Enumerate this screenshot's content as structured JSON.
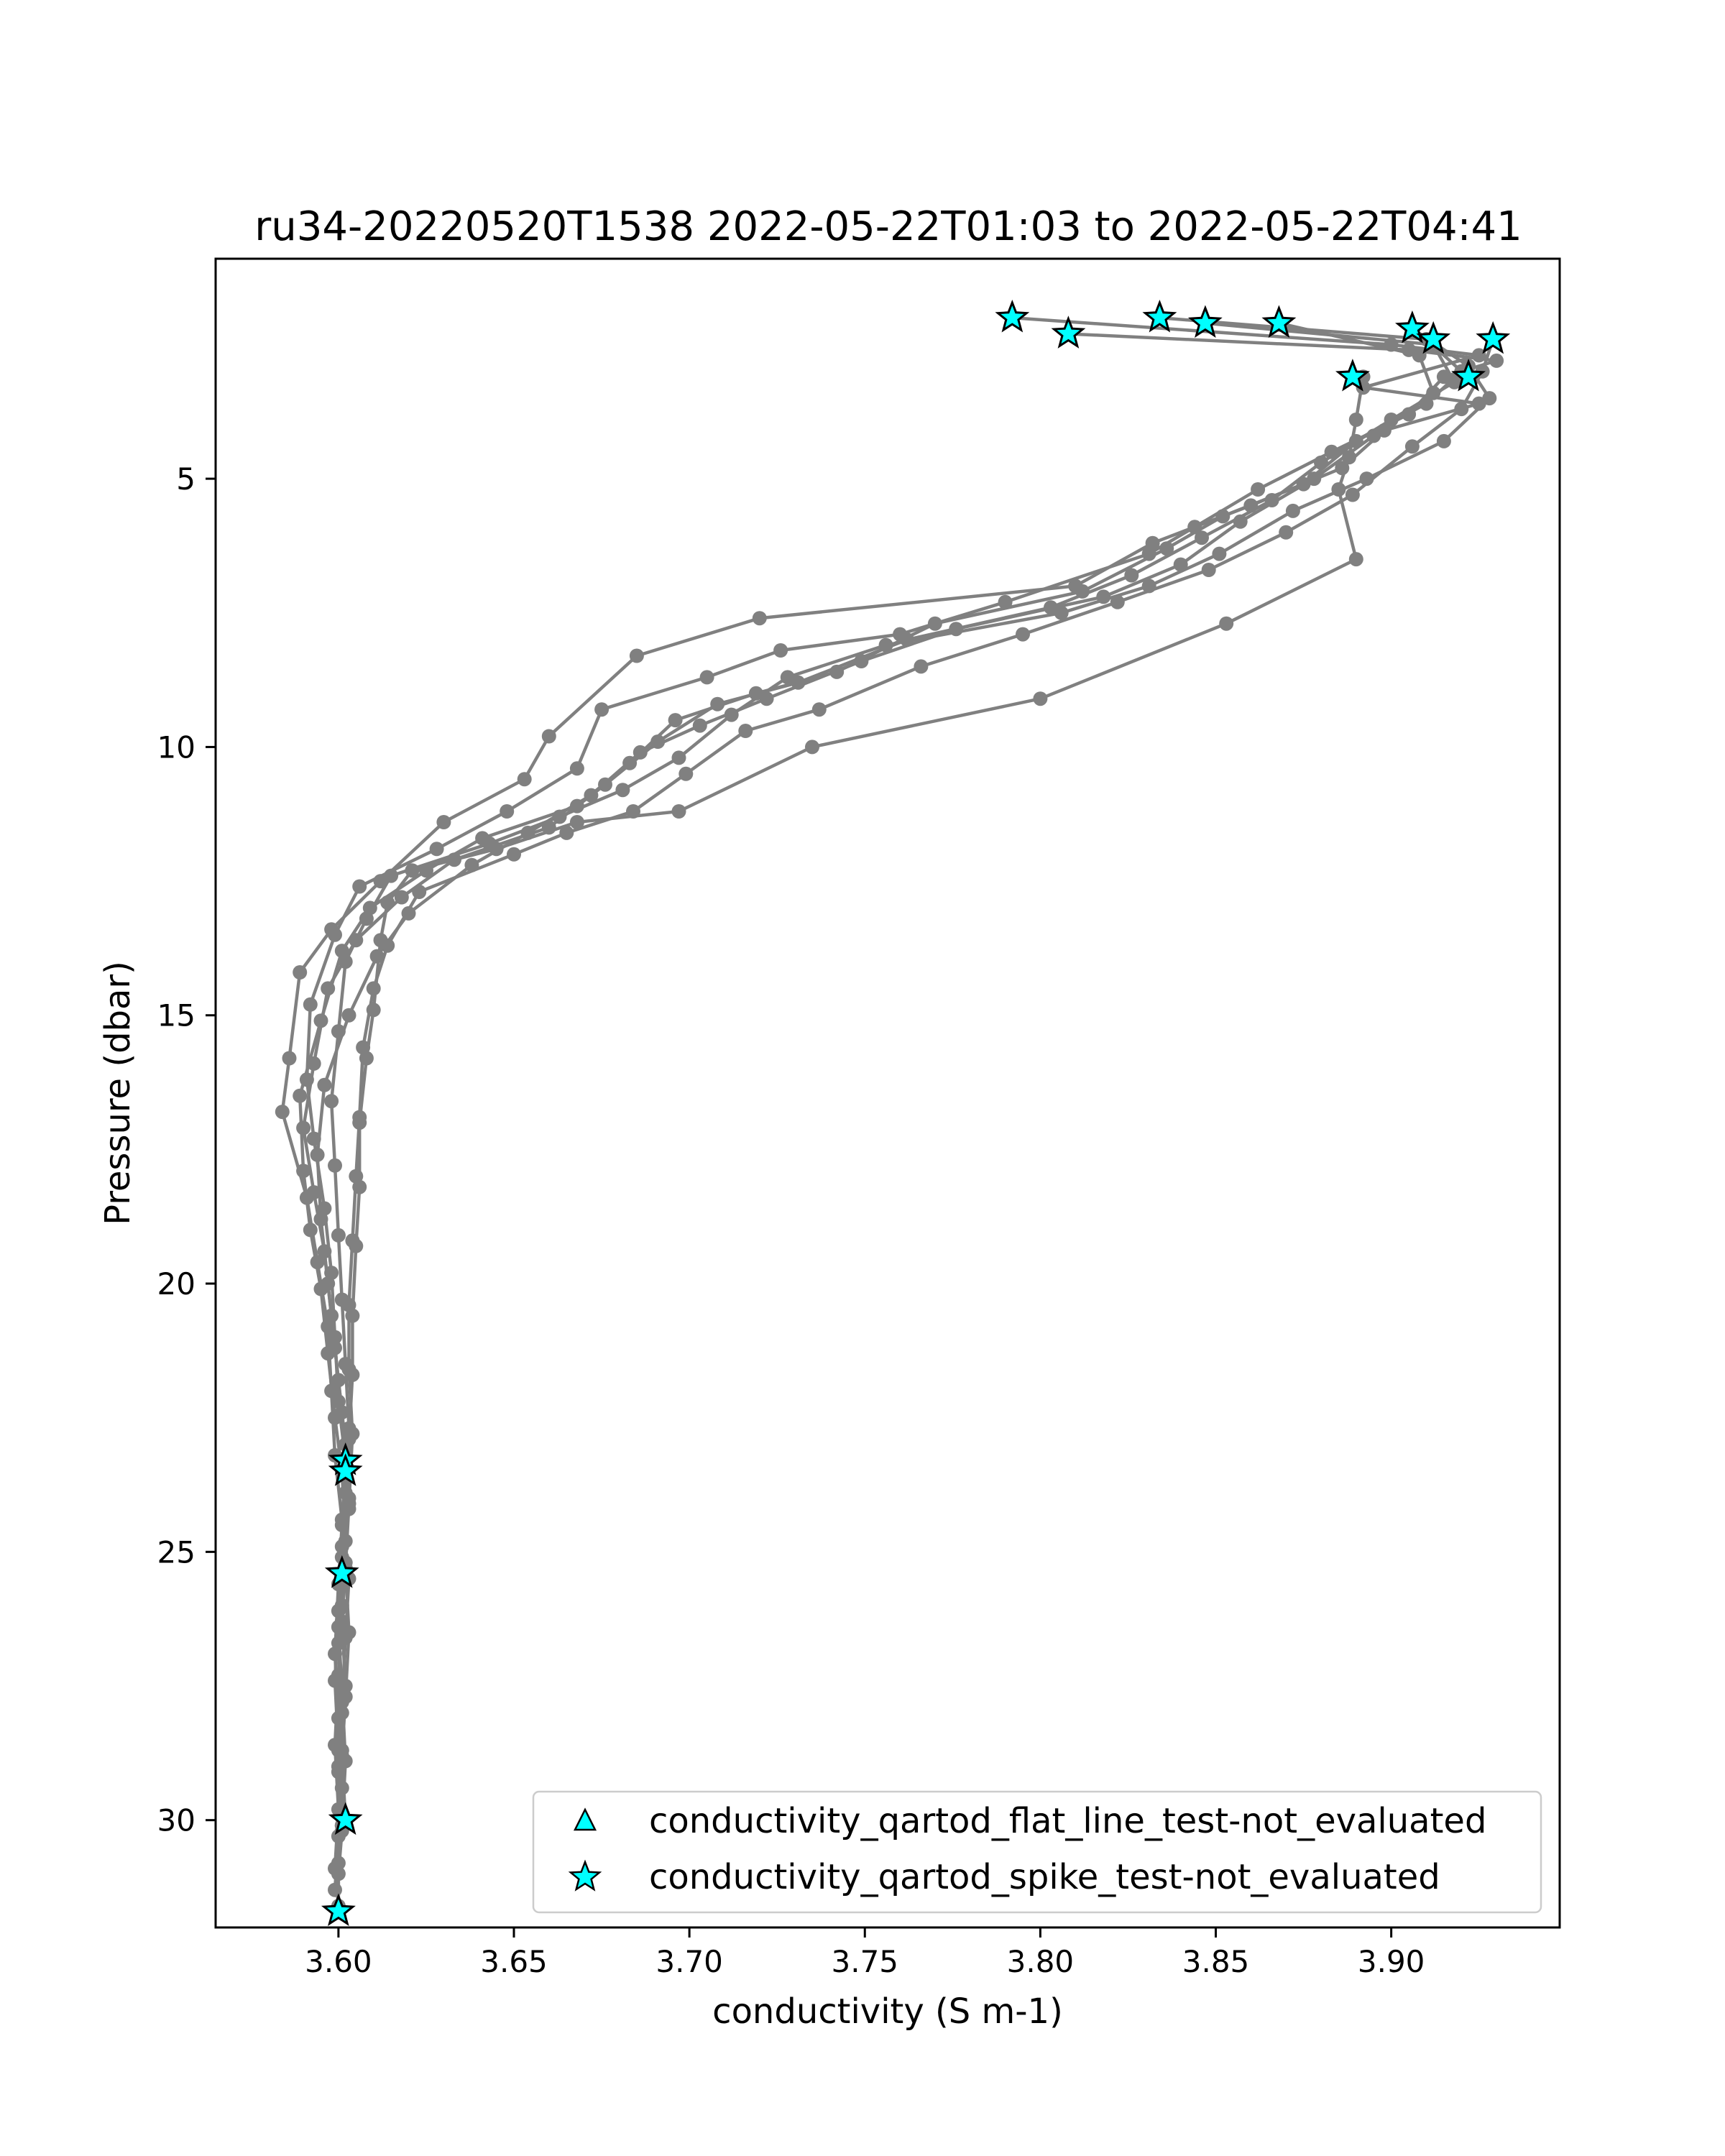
{
  "chart_data": {
    "type": "line",
    "title": "ru34-20220520T1538 2022-05-22T01:03 to 2022-05-22T04:41",
    "xlabel": "conductivity (S m-1)",
    "ylabel": "Pressure (dbar)",
    "xlim": [
      3.565,
      3.948
    ],
    "ylim": [
      32.0,
      0.9
    ],
    "y_inverted": true,
    "grid": false,
    "xticks": [
      3.6,
      3.65,
      3.7,
      3.75,
      3.8,
      3.85,
      3.9
    ],
    "xtick_labels": [
      "3.60",
      "3.65",
      "3.70",
      "3.75",
      "3.80",
      "3.85",
      "3.90"
    ],
    "yticks": [
      5,
      10,
      15,
      20,
      25,
      30
    ],
    "ytick_labels": [
      "5",
      "10",
      "15",
      "20",
      "25",
      "30"
    ],
    "line_color": "#808080",
    "marker_color": "#00ffff",
    "legend_position": "lower right",
    "legend": [
      {
        "label": "conductivity_qartod_flat_line_test-not_evaluated",
        "marker": "triangle"
      },
      {
        "label": "conductivity_qartod_spike_test-not_evaluated",
        "marker": "star"
      }
    ],
    "series": [
      {
        "points": [
          [
            3.792,
            2.0
          ],
          [
            3.9,
            2.5
          ],
          [
            3.925,
            2.7
          ],
          [
            3.892,
            3.3
          ],
          [
            3.925,
            3.6
          ],
          [
            3.898,
            4.1
          ],
          [
            3.886,
            4.8
          ],
          [
            3.86,
            5.5
          ],
          [
            3.832,
            6.2
          ],
          [
            3.81,
            7.0
          ],
          [
            3.72,
            7.6
          ],
          [
            3.685,
            8.3
          ],
          [
            3.66,
            9.8
          ],
          [
            3.653,
            10.6
          ],
          [
            3.63,
            11.4
          ],
          [
            3.612,
            12.5
          ],
          [
            3.598,
            13.4
          ],
          [
            3.589,
            14.2
          ],
          [
            3.586,
            15.8
          ],
          [
            3.584,
            16.8
          ],
          [
            3.591,
            18.4
          ],
          [
            3.594,
            19.6
          ],
          [
            3.597,
            20.8
          ],
          [
            3.598,
            22.0
          ],
          [
            3.599,
            23.2
          ],
          [
            3.601,
            24.4
          ],
          [
            3.603,
            25.5
          ],
          [
            3.602,
            26.6
          ],
          [
            3.601,
            27.8
          ],
          [
            3.6,
            29.0
          ],
          [
            3.601,
            30.2
          ],
          [
            3.6,
            31.0
          ],
          [
            3.6,
            31.7
          ]
        ]
      },
      {
        "points": [
          [
            3.808,
            2.3
          ],
          [
            3.905,
            2.6
          ],
          [
            3.93,
            2.8
          ],
          [
            3.915,
            3.1
          ],
          [
            3.905,
            3.8
          ],
          [
            3.883,
            4.5
          ],
          [
            3.862,
            5.2
          ],
          [
            3.844,
            5.9
          ],
          [
            3.831,
            6.4
          ],
          [
            3.79,
            7.3
          ],
          [
            3.76,
            7.9
          ],
          [
            3.726,
            8.2
          ],
          [
            3.705,
            8.7
          ],
          [
            3.675,
            9.3
          ],
          [
            3.668,
            10.4
          ],
          [
            3.648,
            11.2
          ],
          [
            3.628,
            11.9
          ],
          [
            3.606,
            12.6
          ],
          [
            3.599,
            13.5
          ],
          [
            3.592,
            14.8
          ],
          [
            3.591,
            16.2
          ],
          [
            3.593,
            17.3
          ],
          [
            3.596,
            18.6
          ],
          [
            3.598,
            19.8
          ],
          [
            3.599,
            21.0
          ],
          [
            3.6,
            22.2
          ],
          [
            3.602,
            23.3
          ],
          [
            3.601,
            24.5
          ],
          [
            3.6,
            25.6
          ],
          [
            3.599,
            26.9
          ],
          [
            3.6,
            28.1
          ],
          [
            3.601,
            29.4
          ],
          [
            3.602,
            30.0
          ]
        ]
      },
      {
        "points": [
          [
            3.834,
            2.0
          ],
          [
            3.91,
            2.4
          ],
          [
            3.92,
            3.0
          ],
          [
            3.91,
            3.6
          ],
          [
            3.89,
            4.3
          ],
          [
            3.875,
            5.1
          ],
          [
            3.852,
            5.7
          ],
          [
            3.836,
            6.3
          ],
          [
            3.812,
            7.1
          ],
          [
            3.77,
            7.7
          ],
          [
            3.742,
            8.6
          ],
          [
            3.719,
            9.0
          ],
          [
            3.696,
            9.5
          ],
          [
            3.683,
            10.3
          ],
          [
            3.668,
            11.1
          ],
          [
            3.641,
            11.7
          ],
          [
            3.625,
            12.3
          ],
          [
            3.609,
            13.0
          ],
          [
            3.601,
            13.8
          ],
          [
            3.595,
            15.1
          ],
          [
            3.589,
            16.5
          ],
          [
            3.59,
            17.9
          ],
          [
            3.592,
            19.0
          ],
          [
            3.595,
            20.1
          ],
          [
            3.597,
            21.3
          ],
          [
            3.599,
            22.5
          ],
          [
            3.601,
            23.5
          ],
          [
            3.602,
            24.8
          ],
          [
            3.601,
            26.0
          ],
          [
            3.6,
            27.3
          ],
          [
            3.599,
            28.6
          ],
          [
            3.6,
            29.8
          ],
          [
            3.599,
            30.9
          ],
          [
            3.6,
            31.6
          ]
        ]
      },
      {
        "points": [
          [
            3.847,
            2.1
          ],
          [
            3.912,
            2.5
          ],
          [
            3.918,
            3.2
          ],
          [
            3.9,
            3.9
          ],
          [
            3.88,
            4.7
          ],
          [
            3.866,
            5.4
          ],
          [
            3.846,
            6.1
          ],
          [
            3.826,
            6.8
          ],
          [
            3.803,
            7.4
          ],
          [
            3.762,
            8.0
          ],
          [
            3.731,
            8.8
          ],
          [
            3.708,
            9.2
          ],
          [
            3.691,
            9.9
          ],
          [
            3.676,
            10.7
          ],
          [
            3.66,
            11.5
          ],
          [
            3.633,
            12.1
          ],
          [
            3.618,
            12.8
          ],
          [
            3.605,
            13.6
          ],
          [
            3.597,
            14.5
          ],
          [
            3.593,
            15.9
          ],
          [
            3.59,
            17.1
          ],
          [
            3.593,
            18.3
          ],
          [
            3.596,
            19.4
          ],
          [
            3.598,
            20.6
          ],
          [
            3.6,
            21.8
          ],
          [
            3.602,
            23.0
          ],
          [
            3.603,
            24.2
          ],
          [
            3.601,
            25.4
          ],
          [
            3.6,
            26.7
          ],
          [
            3.601,
            28.0
          ],
          [
            3.6,
            29.1
          ],
          [
            3.6,
            30.3
          ],
          [
            3.599,
            31.3
          ]
        ]
      },
      {
        "points": [
          [
            3.868,
            2.1
          ],
          [
            3.908,
            2.7
          ],
          [
            3.912,
            3.4
          ],
          [
            3.895,
            4.2
          ],
          [
            3.878,
            5.0
          ],
          [
            3.857,
            5.8
          ],
          [
            3.84,
            6.6
          ],
          [
            3.818,
            7.2
          ],
          [
            3.776,
            7.8
          ],
          [
            3.749,
            8.4
          ],
          [
            3.722,
            9.1
          ],
          [
            3.703,
            9.6
          ],
          [
            3.686,
            10.1
          ],
          [
            3.672,
            10.9
          ],
          [
            3.654,
            11.6
          ],
          [
            3.638,
            12.2
          ],
          [
            3.62,
            13.1
          ],
          [
            3.611,
            13.9
          ],
          [
            3.603,
            15.0
          ],
          [
            3.596,
            16.3
          ],
          [
            3.594,
            17.6
          ],
          [
            3.595,
            18.8
          ],
          [
            3.597,
            20.0
          ],
          [
            3.599,
            21.2
          ],
          [
            3.601,
            22.4
          ],
          [
            3.602,
            23.6
          ],
          [
            3.601,
            24.9
          ],
          [
            3.6,
            26.1
          ],
          [
            3.599,
            27.4
          ],
          [
            3.6,
            28.7
          ],
          [
            3.601,
            29.9
          ],
          [
            3.6,
            30.8
          ]
        ]
      },
      {
        "points": [
          [
            3.906,
            2.2
          ],
          [
            3.922,
            2.9
          ],
          [
            3.928,
            3.5
          ],
          [
            3.915,
            4.3
          ],
          [
            3.893,
            5.0
          ],
          [
            3.872,
            5.6
          ],
          [
            3.851,
            6.4
          ],
          [
            3.831,
            7.0
          ],
          [
            3.806,
            7.5
          ],
          [
            3.756,
            8.1
          ],
          [
            3.728,
            8.7
          ],
          [
            3.712,
            9.4
          ],
          [
            3.697,
            10.2
          ],
          [
            3.681,
            10.8
          ],
          [
            3.663,
            11.3
          ],
          [
            3.643,
            11.8
          ],
          [
            3.615,
            12.4
          ],
          [
            3.608,
            13.2
          ],
          [
            3.602,
            14.0
          ],
          [
            3.6,
            15.3
          ],
          [
            3.598,
            16.6
          ],
          [
            3.599,
            17.8
          ],
          [
            3.6,
            19.1
          ],
          [
            3.601,
            20.3
          ],
          [
            3.602,
            21.5
          ],
          [
            3.603,
            22.7
          ],
          [
            3.602,
            23.9
          ],
          [
            3.601,
            25.1
          ],
          [
            3.6,
            26.4
          ],
          [
            3.601,
            27.6
          ],
          [
            3.602,
            28.9
          ],
          [
            3.601,
            30.1
          ]
        ]
      },
      {
        "points": [
          [
            3.929,
            2.4
          ],
          [
            3.926,
            3.0
          ],
          [
            3.92,
            3.7
          ],
          [
            3.906,
            4.4
          ],
          [
            3.889,
            5.3
          ],
          [
            3.87,
            6.0
          ],
          [
            3.848,
            6.7
          ],
          [
            3.822,
            7.3
          ],
          [
            3.795,
            7.9
          ],
          [
            3.766,
            8.5
          ],
          [
            3.737,
            9.3
          ],
          [
            3.716,
            9.7
          ],
          [
            3.699,
            10.5
          ],
          [
            3.684,
            11.2
          ],
          [
            3.665,
            11.6
          ],
          [
            3.65,
            12.0
          ],
          [
            3.623,
            12.7
          ],
          [
            3.614,
            13.7
          ],
          [
            3.61,
            14.5
          ],
          [
            3.607,
            15.6
          ],
          [
            3.606,
            16.9
          ],
          [
            3.605,
            18.0
          ],
          [
            3.604,
            19.2
          ],
          [
            3.603,
            20.4
          ],
          [
            3.603,
            21.6
          ],
          [
            3.604,
            22.8
          ],
          [
            3.603,
            24.1
          ],
          [
            3.602,
            25.3
          ],
          [
            3.603,
            26.5
          ],
          [
            3.602,
            27.7
          ],
          [
            3.601,
            28.8
          ],
          [
            3.602,
            30.0
          ]
        ]
      },
      {
        "points": [
          [
            3.892,
            3.1
          ],
          [
            3.89,
            3.9
          ],
          [
            3.888,
            4.6
          ],
          [
            3.885,
            5.2
          ],
          [
            3.89,
            6.5
          ],
          [
            3.853,
            7.7
          ],
          [
            3.8,
            9.1
          ],
          [
            3.735,
            10.0
          ],
          [
            3.697,
            11.2
          ],
          [
            3.668,
            11.4
          ],
          [
            3.645,
            11.9
          ],
          [
            3.621,
            12.3
          ],
          [
            3.614,
            12.9
          ],
          [
            3.612,
            13.6
          ],
          [
            3.61,
            14.9
          ],
          [
            3.608,
            15.8
          ],
          [
            3.606,
            17.0
          ],
          [
            3.606,
            18.2
          ],
          [
            3.605,
            19.3
          ],
          [
            3.604,
            20.6
          ],
          [
            3.604,
            21.7
          ],
          [
            3.603,
            22.9
          ],
          [
            3.603,
            24.0
          ],
          [
            3.602,
            25.2
          ],
          [
            3.601,
            26.3
          ],
          [
            3.602,
            27.5
          ],
          [
            3.601,
            28.7
          ],
          [
            3.601,
            30.1
          ]
        ]
      }
    ],
    "spike_test_markers": [
      [
        3.792,
        2.0
      ],
      [
        3.808,
        2.3
      ],
      [
        3.834,
        2.0
      ],
      [
        3.847,
        2.1
      ],
      [
        3.868,
        2.1
      ],
      [
        3.906,
        2.2
      ],
      [
        3.912,
        2.4
      ],
      [
        3.929,
        2.4
      ],
      [
        3.922,
        3.1
      ],
      [
        3.889,
        3.1
      ],
      [
        3.602,
        23.3
      ],
      [
        3.602,
        23.5
      ],
      [
        3.601,
        25.4
      ],
      [
        3.602,
        30.0
      ],
      [
        3.6,
        31.7
      ]
    ]
  }
}
